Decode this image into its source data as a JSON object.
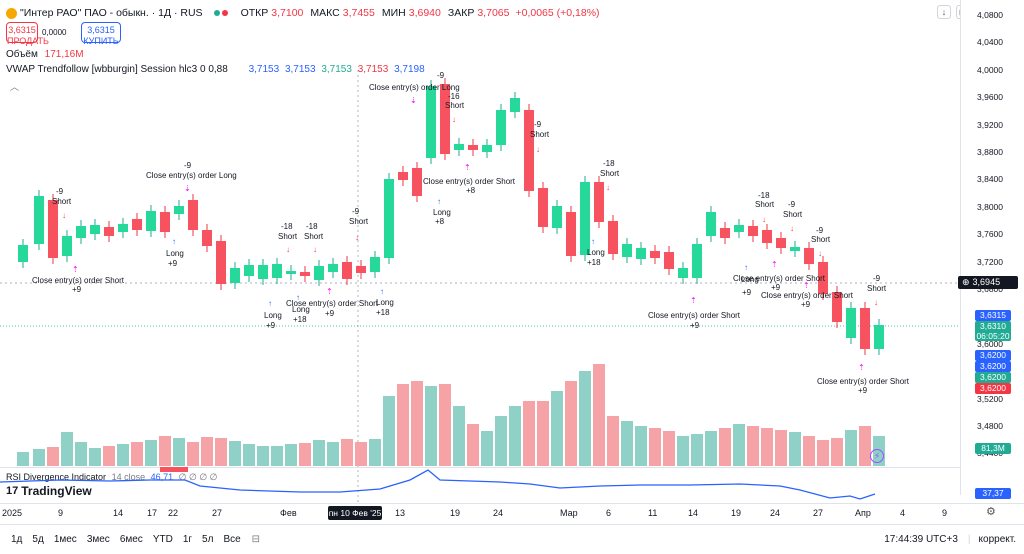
{
  "header": {
    "title": "\"Интер РАО\" ПАО - обыкн. · 1Д · RUS",
    "open_label": "ОТКР",
    "open": "3,7100",
    "high_label": "МАКС",
    "high": "3,7455",
    "low_label": "МИН",
    "low": "3,6940",
    "close_label": "ЗАКР",
    "close": "3,7065",
    "change": "+0,0065 (+0,18%)"
  },
  "trade": {
    "sell_price": "3,6315",
    "sell_label": "ПРОДАТЬ",
    "spread": "0,0000",
    "buy_price": "3,6315",
    "buy_label": "КУПИТЬ"
  },
  "volume": {
    "label": "Объём",
    "value": "171,16M"
  },
  "indicator": {
    "name": "VWAP Trendfollow [wbburgin] Session hlc3 0 0,88",
    "v1": "3,7153",
    "v2": "3,7153",
    "v3": "3,7153",
    "v4": "3,7153",
    "v5": "3,7198"
  },
  "rsi": {
    "name": "RSI Divergence Indicator",
    "params": "14 close",
    "value": "46,71",
    "na": "∅ ∅ ∅ ∅",
    "scale_value": "37,37"
  },
  "logo": "TradingView",
  "price_axis": {
    "ticks": [
      "4,0800",
      "4,0400",
      "4,0000",
      "3,9600",
      "3,9200",
      "3,8800",
      "3,8400",
      "3,8000",
      "3,7600",
      "3,7200",
      "3,6800",
      "3,6400",
      "3,6000",
      "3,5600",
      "3,5200",
      "3,4800",
      "3,4400"
    ],
    "crosshair": "3,6945",
    "last_blue": "3,6315",
    "last_green": "3,6310",
    "countdown": "06:05:20",
    "l1": "3,6200",
    "l2": "3,6200",
    "l3": "3,6200",
    "l4": "3,6200",
    "vol_label": "81,3M"
  },
  "date_axis": {
    "labels": [
      "2025",
      "9",
      "14",
      "17",
      "22",
      "27",
      "Фев",
      "13",
      "19",
      "24",
      "Мар",
      "6",
      "11",
      "14",
      "19",
      "24",
      "27",
      "Апр",
      "4",
      "9"
    ],
    "selected": "пн 10 Фев '25"
  },
  "toolbar": {
    "ranges": [
      "1д",
      "5д",
      "1мес",
      "3мес",
      "6мес",
      "YTD",
      "1г",
      "5л",
      "Все"
    ],
    "time": "17:44:39 UTC+3",
    "adjust": "коррект."
  },
  "annotations": {
    "close_short": "Close entry(s) order Short",
    "close_long": "Close entry(s) order Long",
    "short": "Short",
    "long": "Long",
    "m9": "-9",
    "m16": "-16",
    "m18": "-18",
    "p9": "+9",
    "p8": "+8",
    "p18": "+18"
  },
  "colors": {
    "up": "#22ab94",
    "up_bright": "#26e89a",
    "down": "#f7525f",
    "vol_up": "#8fd1c7",
    "vol_down": "#f6a3a8",
    "signal": "#ff00ff",
    "long": "#2962ff",
    "short": "#f23645",
    "rsi": "#2962ff"
  }
}
